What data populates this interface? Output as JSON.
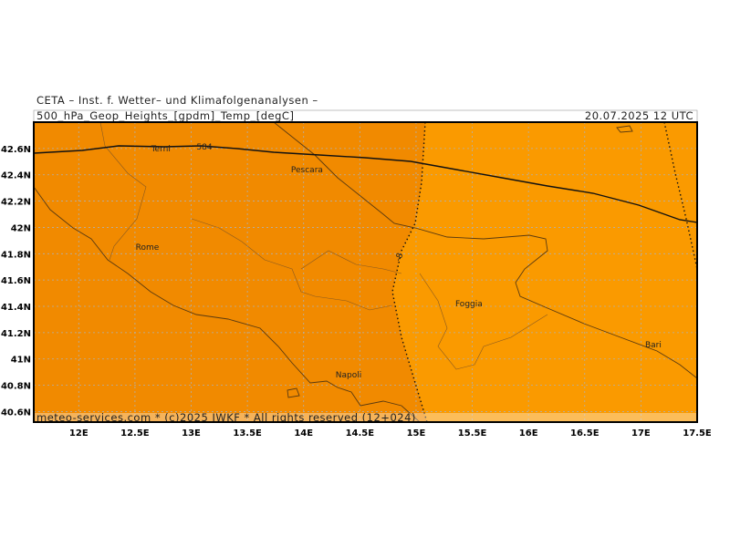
{
  "header": {
    "title": "CETA – Inst. f. Wetter– und Klimafolgenanalysen –",
    "field": "500_hPa_Geop_Heights_[gpdm]_Temp_[degC]",
    "date": "20.07.2025 12 UTC"
  },
  "map": {
    "lon_range": [
      11.6,
      17.5
    ],
    "lat_range": [
      40.52,
      42.8
    ],
    "lon_ticks": [
      {
        "value": 12,
        "label": "12E"
      },
      {
        "value": 12.5,
        "label": "12.5E"
      },
      {
        "value": 13,
        "label": "13E"
      },
      {
        "value": 13.5,
        "label": "13.5E"
      },
      {
        "value": 14,
        "label": "14E"
      },
      {
        "value": 14.5,
        "label": "14.5E"
      },
      {
        "value": 15,
        "label": "15E"
      },
      {
        "value": 15.5,
        "label": "15.5E"
      },
      {
        "value": 16,
        "label": "16E"
      },
      {
        "value": 16.5,
        "label": "16.5E"
      },
      {
        "value": 17,
        "label": "17E"
      },
      {
        "value": 17.5,
        "label": "17.5E"
      }
    ],
    "lat_ticks": [
      {
        "value": 42.6,
        "label": "42.6N"
      },
      {
        "value": 42.4,
        "label": "42.4N"
      },
      {
        "value": 42.2,
        "label": "42.2N"
      },
      {
        "value": 42,
        "label": "42N"
      },
      {
        "value": 41.8,
        "label": "41.8N"
      },
      {
        "value": 41.6,
        "label": "41.6N"
      },
      {
        "value": 41.4,
        "label": "41.4N"
      },
      {
        "value": 41.2,
        "label": "41.2N"
      },
      {
        "value": 41,
        "label": "41N"
      },
      {
        "value": 40.8,
        "label": "40.8N"
      },
      {
        "value": 40.6,
        "label": "40.6N"
      }
    ]
  },
  "cities": [
    {
      "name": "Terni",
      "lon": 12.73,
      "lat": 42.6
    },
    {
      "name": "Pescara",
      "lon": 14.03,
      "lat": 42.44
    },
    {
      "name": "Rome",
      "lon": 12.61,
      "lat": 41.85
    },
    {
      "name": "Foggia",
      "lon": 15.47,
      "lat": 41.42
    },
    {
      "name": "Napoli",
      "lon": 14.4,
      "lat": 40.88
    },
    {
      "name": "Bari",
      "lon": 17.11,
      "lat": 41.11
    }
  ],
  "contours": {
    "height_label": "584",
    "temp_label": "-8"
  },
  "footer": "meteo-services.com * (c)2025 IWKF * All rights reserved (12+024)"
}
